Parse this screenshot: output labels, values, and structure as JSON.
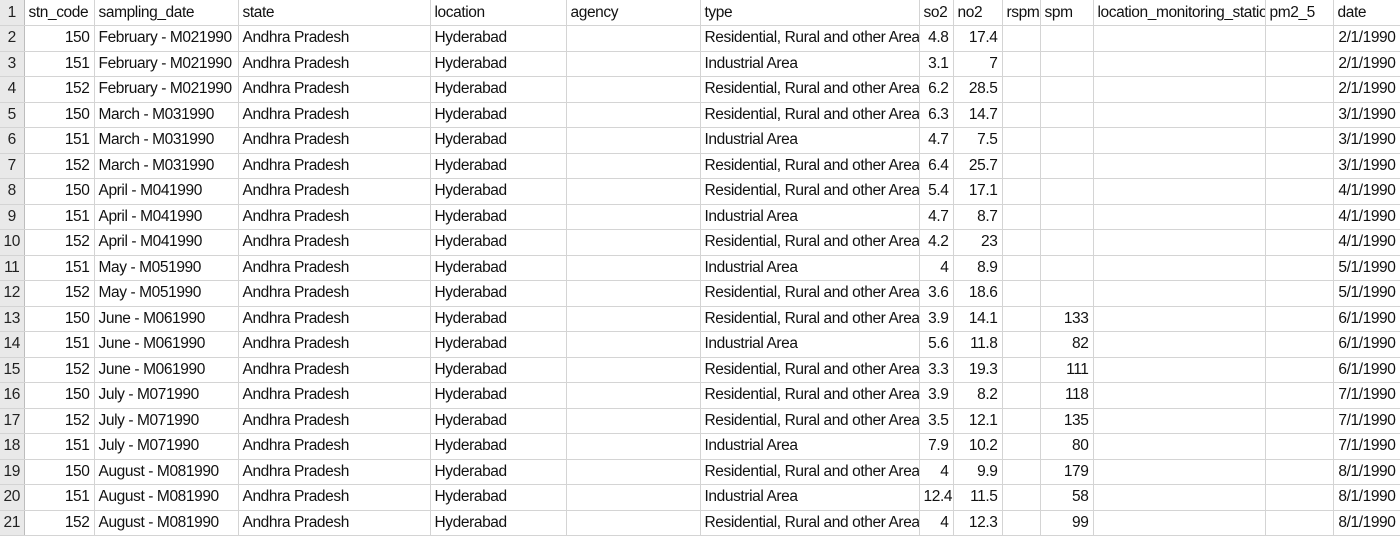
{
  "headers": [
    "stn_code",
    "sampling_date",
    "state",
    "location",
    "agency",
    "type",
    "so2",
    "no2",
    "rspm",
    "spm",
    "location_monitoring_station",
    "pm2_5",
    "date"
  ],
  "rows": [
    [
      "150",
      "February - M021990",
      "Andhra Pradesh",
      "Hyderabad",
      "",
      "Residential, Rural and other Areas",
      "4.8",
      "17.4",
      "",
      "",
      "",
      "",
      "2/1/1990"
    ],
    [
      "151",
      "February - M021990",
      "Andhra Pradesh",
      "Hyderabad",
      "",
      "Industrial Area",
      "3.1",
      "7",
      "",
      "",
      "",
      "",
      "2/1/1990"
    ],
    [
      "152",
      "February - M021990",
      "Andhra Pradesh",
      "Hyderabad",
      "",
      "Residential, Rural and other Areas",
      "6.2",
      "28.5",
      "",
      "",
      "",
      "",
      "2/1/1990"
    ],
    [
      "150",
      "March - M031990",
      "Andhra Pradesh",
      "Hyderabad",
      "",
      "Residential, Rural and other Areas",
      "6.3",
      "14.7",
      "",
      "",
      "",
      "",
      "3/1/1990"
    ],
    [
      "151",
      "March - M031990",
      "Andhra Pradesh",
      "Hyderabad",
      "",
      "Industrial Area",
      "4.7",
      "7.5",
      "",
      "",
      "",
      "",
      "3/1/1990"
    ],
    [
      "152",
      "March - M031990",
      "Andhra Pradesh",
      "Hyderabad",
      "",
      "Residential, Rural and other Areas",
      "6.4",
      "25.7",
      "",
      "",
      "",
      "",
      "3/1/1990"
    ],
    [
      "150",
      "April - M041990",
      "Andhra Pradesh",
      "Hyderabad",
      "",
      "Residential, Rural and other Areas",
      "5.4",
      "17.1",
      "",
      "",
      "",
      "",
      "4/1/1990"
    ],
    [
      "151",
      "April - M041990",
      "Andhra Pradesh",
      "Hyderabad",
      "",
      "Industrial Area",
      "4.7",
      "8.7",
      "",
      "",
      "",
      "",
      "4/1/1990"
    ],
    [
      "152",
      "April - M041990",
      "Andhra Pradesh",
      "Hyderabad",
      "",
      "Residential, Rural and other Areas",
      "4.2",
      "23",
      "",
      "",
      "",
      "",
      "4/1/1990"
    ],
    [
      "151",
      "May - M051990",
      "Andhra Pradesh",
      "Hyderabad",
      "",
      "Industrial Area",
      "4",
      "8.9",
      "",
      "",
      "",
      "",
      "5/1/1990"
    ],
    [
      "152",
      "May - M051990",
      "Andhra Pradesh",
      "Hyderabad",
      "",
      "Residential, Rural and other Areas",
      "3.6",
      "18.6",
      "",
      "",
      "",
      "",
      "5/1/1990"
    ],
    [
      "150",
      "June - M061990",
      "Andhra Pradesh",
      "Hyderabad",
      "",
      "Residential, Rural and other Areas",
      "3.9",
      "14.1",
      "",
      "133",
      "",
      "",
      "6/1/1990"
    ],
    [
      "151",
      "June - M061990",
      "Andhra Pradesh",
      "Hyderabad",
      "",
      "Industrial Area",
      "5.6",
      "11.8",
      "",
      "82",
      "",
      "",
      "6/1/1990"
    ],
    [
      "152",
      "June - M061990",
      "Andhra Pradesh",
      "Hyderabad",
      "",
      "Residential, Rural and other Areas",
      "3.3",
      "19.3",
      "",
      "111",
      "",
      "",
      "6/1/1990"
    ],
    [
      "150",
      "July - M071990",
      "Andhra Pradesh",
      "Hyderabad",
      "",
      "Residential, Rural and other Areas",
      "3.9",
      "8.2",
      "",
      "118",
      "",
      "",
      "7/1/1990"
    ],
    [
      "152",
      "July - M071990",
      "Andhra Pradesh",
      "Hyderabad",
      "",
      "Residential, Rural and other Areas",
      "3.5",
      "12.1",
      "",
      "135",
      "",
      "",
      "7/1/1990"
    ],
    [
      "151",
      "July - M071990",
      "Andhra Pradesh",
      "Hyderabad",
      "",
      "Industrial Area",
      "7.9",
      "10.2",
      "",
      "80",
      "",
      "",
      "7/1/1990"
    ],
    [
      "150",
      "August - M081990",
      "Andhra Pradesh",
      "Hyderabad",
      "",
      "Residential, Rural and other Areas",
      "4",
      "9.9",
      "",
      "179",
      "",
      "",
      "8/1/1990"
    ],
    [
      "151",
      "August - M081990",
      "Andhra Pradesh",
      "Hyderabad",
      "",
      "Industrial Area",
      "12.4",
      "11.5",
      "",
      "58",
      "",
      "",
      "8/1/1990"
    ],
    [
      "152",
      "August - M081990",
      "Andhra Pradesh",
      "Hyderabad",
      "",
      "Residential, Rural and other Areas",
      "4",
      "12.3",
      "",
      "99",
      "",
      "",
      "8/1/1990"
    ]
  ]
}
